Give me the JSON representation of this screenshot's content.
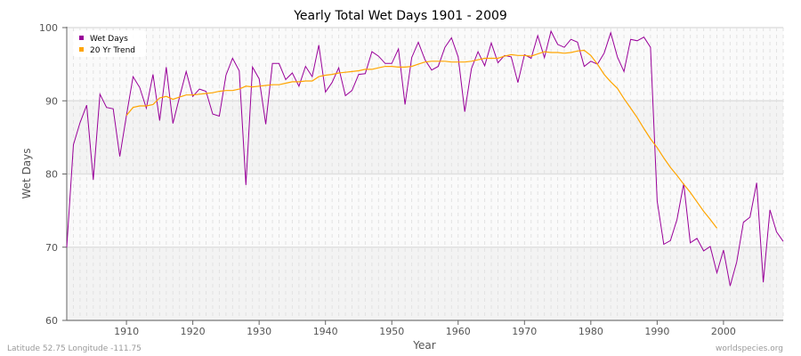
{
  "chart_data": {
    "type": "line",
    "title": "Yearly Total Wet Days 1901 - 2009",
    "xlabel": "Year",
    "ylabel": "Wet Days",
    "xlim": [
      1901,
      2009
    ],
    "ylim": [
      60,
      100
    ],
    "x_ticks": [
      1910,
      1920,
      1930,
      1940,
      1950,
      1960,
      1970,
      1980,
      1990,
      2000
    ],
    "y_ticks": [
      60,
      70,
      80,
      90,
      100
    ],
    "grid": true,
    "legend_position": "top-left",
    "series": [
      {
        "name": "Wet Days",
        "color": "#990099",
        "x_start": 1901,
        "values": [
          70,
          84,
          87,
          89.4,
          79.2,
          90.9,
          89.1,
          88.9,
          82.4,
          88,
          93.3,
          91.8,
          89,
          93.6,
          87.3,
          94.6,
          86.9,
          90.5,
          94,
          90.6,
          91.6,
          91.3,
          88.2,
          87.9,
          93.5,
          95.8,
          94.1,
          78.5,
          94.6,
          93,
          86.8,
          95.1,
          95.1,
          92.9,
          93.8,
          92,
          94.7,
          93.3,
          97.6,
          91.2,
          92.5,
          94.5,
          90.7,
          91.4,
          93.6,
          93.7,
          96.7,
          96.1,
          95.1,
          95.1,
          97.1,
          89.5,
          95.9,
          98,
          95.6,
          94.2,
          94.7,
          97.3,
          98.6,
          96,
          88.5,
          94.4,
          96.7,
          94.8,
          97.9,
          95.2,
          96.2,
          96,
          92.5,
          96.3,
          95.8,
          98.9,
          95.9,
          99.5,
          97.7,
          97.3,
          98.4,
          98,
          94.7,
          95.4,
          95,
          96.5,
          99.3,
          96,
          94,
          98.4,
          98.2,
          98.7,
          97.3,
          76.3,
          70.4,
          70.9,
          73.8,
          78.7,
          70.6,
          71.2,
          69.5,
          70.1,
          66.5,
          69.6,
          64.7,
          68,
          73.4,
          74.1,
          78.8,
          65.2,
          75.1,
          72.1,
          70.8
        ]
      },
      {
        "name": "20 Yr Trend",
        "color": "#ffa500",
        "x_start": 1910,
        "values": [
          88,
          89.1,
          89.3,
          89.3,
          89.5,
          90.4,
          90.6,
          90.2,
          90.5,
          90.8,
          90.8,
          90.9,
          91,
          91.1,
          91.3,
          91.4,
          91.4,
          91.6,
          92,
          91.9,
          92,
          92.1,
          92.2,
          92.2,
          92.4,
          92.6,
          92.6,
          92.7,
          92.7,
          93.3,
          93.5,
          93.6,
          93.8,
          93.9,
          94,
          94.1,
          94.3,
          94.3,
          94.5,
          94.7,
          94.7,
          94.6,
          94.6,
          94.7,
          95,
          95.3,
          95.4,
          95.4,
          95.4,
          95.3,
          95.3,
          95.3,
          95.4,
          95.6,
          95.8,
          95.8,
          95.8,
          96.1,
          96.3,
          96.2,
          96.2,
          96.1,
          96.4,
          96.7,
          96.6,
          96.6,
          96.5,
          96.6,
          96.8,
          96.9,
          96.2,
          95,
          93.6,
          92.6,
          91.7,
          90.3,
          89,
          87.7,
          86.2,
          84.8,
          83.6,
          82.2,
          80.9,
          79.8,
          78.6,
          77.5,
          76.2,
          74.9,
          73.8,
          72.6
        ]
      }
    ]
  },
  "footer": {
    "location": "Latitude 52.75 Longitude -111.75",
    "site": "worldspecies.org"
  }
}
